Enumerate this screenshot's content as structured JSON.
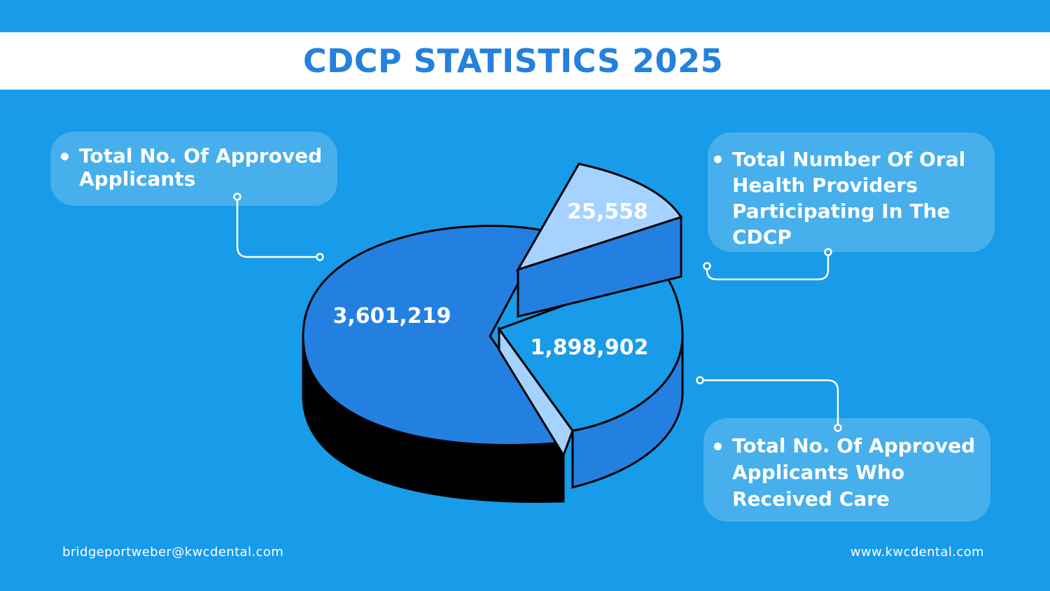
{
  "title": "CDCP STATISTICS 2025",
  "callouts": {
    "applicants": "Total No. Of Approved Applicants",
    "providers": "Total Number Of Oral Health Providers Participating In The CDCP",
    "care": "Total No. Of Approved Applicants Who Received Care"
  },
  "footer": {
    "email": "bridgeportweber@kwcdental.com",
    "website": "www.kwcdental.com"
  },
  "colors": {
    "background": "#189be8",
    "title": "#2481dc",
    "slice_dark": "#2480e0",
    "slice_mid": "#189be8",
    "slice_light": "#a6d2ff",
    "side_dark": "#000000"
  },
  "chart_data": {
    "type": "pie",
    "title": "CDCP STATISTICS 2025",
    "categories": [
      "Total No. Of Approved Applicants",
      "Total No. Of Approved Applicants Who Received Care",
      "Total Number Of Oral Health Providers Participating In The CDCP"
    ],
    "values": [
      3601219,
      1898902,
      25558
    ],
    "value_labels": [
      "3,601,219",
      "1,898,902",
      "25,558"
    ],
    "style": "3d-exploded",
    "legend": "callouts"
  }
}
